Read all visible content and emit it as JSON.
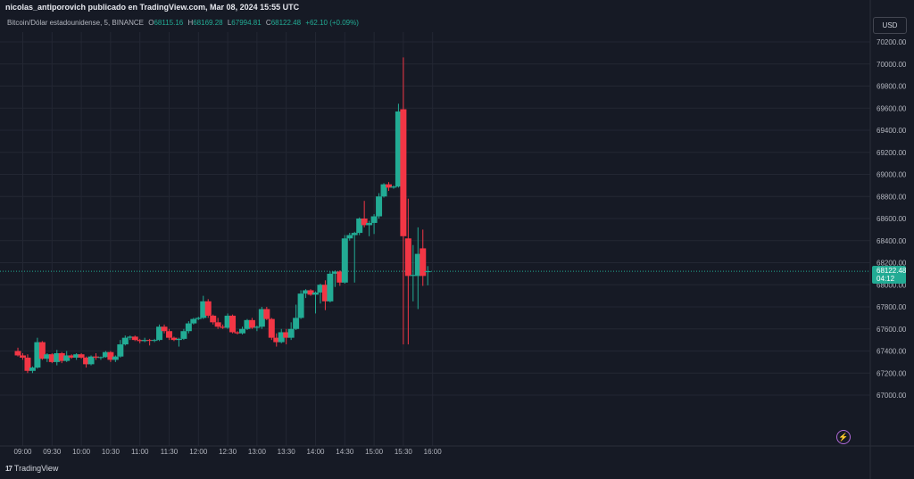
{
  "header": {
    "published_by": "nicolas_antiporovich publicado en TradingView.com, Mar 08, 2024 15:55 UTC"
  },
  "legend": {
    "symbol": "Bitcoin/Dólar estadounidense, 5, BINANCE",
    "o_label": "O",
    "o_value": "68115.16",
    "h_label": "H",
    "h_value": "68169.28",
    "l_label": "L",
    "l_value": "67994.81",
    "c_label": "C",
    "c_value": "68122.48",
    "change": "+62.10 (+0.09%)"
  },
  "currency_button": "USD",
  "last_price": {
    "value": "68122.48",
    "countdown": "04:12"
  },
  "brand": "TradingView",
  "colors": {
    "up": "#22ab94",
    "down": "#f23645",
    "background": "#161a25",
    "grid": "#232733"
  },
  "chart_data": {
    "type": "candlestick",
    "title": "",
    "y_ticks": [
      "70200.00",
      "70000.00",
      "69800.00",
      "69600.00",
      "69400.00",
      "69200.00",
      "69000.00",
      "68800.00",
      "68600.00",
      "68400.00",
      "68200.00",
      "68000.00",
      "67800.00",
      "67600.00",
      "67400.00",
      "67200.00",
      "67000.00"
    ],
    "x_ticks": [
      "09:00",
      "09:30",
      "10:00",
      "10:30",
      "11:00",
      "11:30",
      "12:00",
      "12:30",
      "13:00",
      "13:30",
      "14:00",
      "14:30",
      "15:00",
      "15:30",
      "16:00"
    ],
    "ylim": [
      66900,
      70300
    ],
    "first_bar_time": "08:55",
    "bar_interval_minutes": 5,
    "last_price": 68122.48,
    "candles": [
      {
        "o": 67400,
        "h": 67430,
        "l": 67350,
        "c": 67360
      },
      {
        "o": 67360,
        "h": 67380,
        "l": 67320,
        "c": 67340
      },
      {
        "o": 67340,
        "h": 67370,
        "l": 67200,
        "c": 67220
      },
      {
        "o": 67220,
        "h": 67260,
        "l": 67200,
        "c": 67250
      },
      {
        "o": 67250,
        "h": 67520,
        "l": 67240,
        "c": 67480
      },
      {
        "o": 67480,
        "h": 67490,
        "l": 67320,
        "c": 67330
      },
      {
        "o": 67330,
        "h": 67380,
        "l": 67300,
        "c": 67370
      },
      {
        "o": 67370,
        "h": 67380,
        "l": 67290,
        "c": 67300
      },
      {
        "o": 67300,
        "h": 67410,
        "l": 67270,
        "c": 67380
      },
      {
        "o": 67380,
        "h": 67390,
        "l": 67290,
        "c": 67310
      },
      {
        "o": 67310,
        "h": 67400,
        "l": 67300,
        "c": 67360
      },
      {
        "o": 67360,
        "h": 67370,
        "l": 67330,
        "c": 67340
      },
      {
        "o": 67340,
        "h": 67380,
        "l": 67320,
        "c": 67370
      },
      {
        "o": 67370,
        "h": 67380,
        "l": 67330,
        "c": 67340
      },
      {
        "o": 67340,
        "h": 67350,
        "l": 67250,
        "c": 67280
      },
      {
        "o": 67280,
        "h": 67360,
        "l": 67270,
        "c": 67350
      },
      {
        "o": 67350,
        "h": 67380,
        "l": 67320,
        "c": 67340
      },
      {
        "o": 67340,
        "h": 67350,
        "l": 67320,
        "c": 67345
      },
      {
        "o": 67345,
        "h": 67400,
        "l": 67340,
        "c": 67390
      },
      {
        "o": 67390,
        "h": 67400,
        "l": 67300,
        "c": 67320
      },
      {
        "o": 67320,
        "h": 67360,
        "l": 67300,
        "c": 67350
      },
      {
        "o": 67350,
        "h": 67500,
        "l": 67340,
        "c": 67460
      },
      {
        "o": 67460,
        "h": 67540,
        "l": 67450,
        "c": 67520
      },
      {
        "o": 67520,
        "h": 67540,
        "l": 67500,
        "c": 67530
      },
      {
        "o": 67530,
        "h": 67540,
        "l": 67490,
        "c": 67500
      },
      {
        "o": 67500,
        "h": 67510,
        "l": 67470,
        "c": 67490
      },
      {
        "o": 67490,
        "h": 67520,
        "l": 67480,
        "c": 67500
      },
      {
        "o": 67500,
        "h": 67510,
        "l": 67450,
        "c": 67495
      },
      {
        "o": 67495,
        "h": 67510,
        "l": 67480,
        "c": 67500
      },
      {
        "o": 67500,
        "h": 67640,
        "l": 67490,
        "c": 67620
      },
      {
        "o": 67620,
        "h": 67640,
        "l": 67560,
        "c": 67580
      },
      {
        "o": 67580,
        "h": 67600,
        "l": 67500,
        "c": 67520
      },
      {
        "o": 67520,
        "h": 67530,
        "l": 67490,
        "c": 67500
      },
      {
        "o": 67500,
        "h": 67520,
        "l": 67440,
        "c": 67510
      },
      {
        "o": 67510,
        "h": 67600,
        "l": 67500,
        "c": 67580
      },
      {
        "o": 67580,
        "h": 67670,
        "l": 67560,
        "c": 67650
      },
      {
        "o": 67650,
        "h": 67700,
        "l": 67640,
        "c": 67690
      },
      {
        "o": 67690,
        "h": 67710,
        "l": 67680,
        "c": 67700
      },
      {
        "o": 67700,
        "h": 67900,
        "l": 67690,
        "c": 67850
      },
      {
        "o": 67850,
        "h": 67870,
        "l": 67700,
        "c": 67720
      },
      {
        "o": 67720,
        "h": 67730,
        "l": 67640,
        "c": 67660
      },
      {
        "o": 67660,
        "h": 67700,
        "l": 67600,
        "c": 67620
      },
      {
        "o": 67620,
        "h": 67640,
        "l": 67600,
        "c": 67610
      },
      {
        "o": 67610,
        "h": 67740,
        "l": 67600,
        "c": 67720
      },
      {
        "o": 67720,
        "h": 67730,
        "l": 67560,
        "c": 67570
      },
      {
        "o": 67570,
        "h": 67580,
        "l": 67550,
        "c": 67560
      },
      {
        "o": 67560,
        "h": 67620,
        "l": 67550,
        "c": 67600
      },
      {
        "o": 67600,
        "h": 67690,
        "l": 67590,
        "c": 67680
      },
      {
        "o": 67680,
        "h": 67700,
        "l": 67600,
        "c": 67610
      },
      {
        "o": 67610,
        "h": 67630,
        "l": 67580,
        "c": 67620
      },
      {
        "o": 67620,
        "h": 67800,
        "l": 67600,
        "c": 67780
      },
      {
        "o": 67780,
        "h": 67800,
        "l": 67680,
        "c": 67690
      },
      {
        "o": 67690,
        "h": 67700,
        "l": 67500,
        "c": 67520
      },
      {
        "o": 67520,
        "h": 67560,
        "l": 67440,
        "c": 67480
      },
      {
        "o": 67480,
        "h": 67600,
        "l": 67470,
        "c": 67570
      },
      {
        "o": 67570,
        "h": 67600,
        "l": 67460,
        "c": 67520
      },
      {
        "o": 67520,
        "h": 67660,
        "l": 67500,
        "c": 67600
      },
      {
        "o": 67600,
        "h": 67820,
        "l": 67590,
        "c": 67700
      },
      {
        "o": 67700,
        "h": 67950,
        "l": 67690,
        "c": 67920
      },
      {
        "o": 67920,
        "h": 67960,
        "l": 67880,
        "c": 67950
      },
      {
        "o": 67950,
        "h": 67960,
        "l": 67900,
        "c": 67910
      },
      {
        "o": 67910,
        "h": 67940,
        "l": 67740,
        "c": 67930
      },
      {
        "o": 67930,
        "h": 68010,
        "l": 67830,
        "c": 68000
      },
      {
        "o": 68000,
        "h": 68040,
        "l": 67770,
        "c": 67850
      },
      {
        "o": 67850,
        "h": 68120,
        "l": 67840,
        "c": 68100
      },
      {
        "o": 68100,
        "h": 68130,
        "l": 67980,
        "c": 68120
      },
      {
        "o": 68120,
        "h": 68130,
        "l": 67990,
        "c": 68020
      },
      {
        "o": 68020,
        "h": 68450,
        "l": 68010,
        "c": 68420
      },
      {
        "o": 68420,
        "h": 68470,
        "l": 68400,
        "c": 68450
      },
      {
        "o": 68450,
        "h": 68480,
        "l": 68020,
        "c": 68470
      },
      {
        "o": 68470,
        "h": 68610,
        "l": 68450,
        "c": 68600
      },
      {
        "o": 68600,
        "h": 68760,
        "l": 68520,
        "c": 68540
      },
      {
        "o": 68540,
        "h": 68580,
        "l": 68440,
        "c": 68560
      },
      {
        "o": 68560,
        "h": 68640,
        "l": 68460,
        "c": 68620
      },
      {
        "o": 68620,
        "h": 68830,
        "l": 68600,
        "c": 68800
      },
      {
        "o": 68800,
        "h": 68920,
        "l": 68790,
        "c": 68910
      },
      {
        "o": 68910,
        "h": 68930,
        "l": 68850,
        "c": 68880
      },
      {
        "o": 68880,
        "h": 68900,
        "l": 68870,
        "c": 68890
      },
      {
        "o": 68890,
        "h": 69640,
        "l": 68880,
        "c": 69570
      },
      {
        "o": 69590,
        "h": 70060,
        "l": 67460,
        "c": 68440
      },
      {
        "o": 68420,
        "h": 68780,
        "l": 67460,
        "c": 68080
      },
      {
        "o": 68080,
        "h": 68360,
        "l": 67850,
        "c": 68090
      },
      {
        "o": 68080,
        "h": 68520,
        "l": 67780,
        "c": 68280
      },
      {
        "o": 68330,
        "h": 68500,
        "l": 67990,
        "c": 68080
      },
      {
        "o": 68115.16,
        "h": 68169.28,
        "l": 67994.81,
        "c": 68122.48
      }
    ]
  }
}
